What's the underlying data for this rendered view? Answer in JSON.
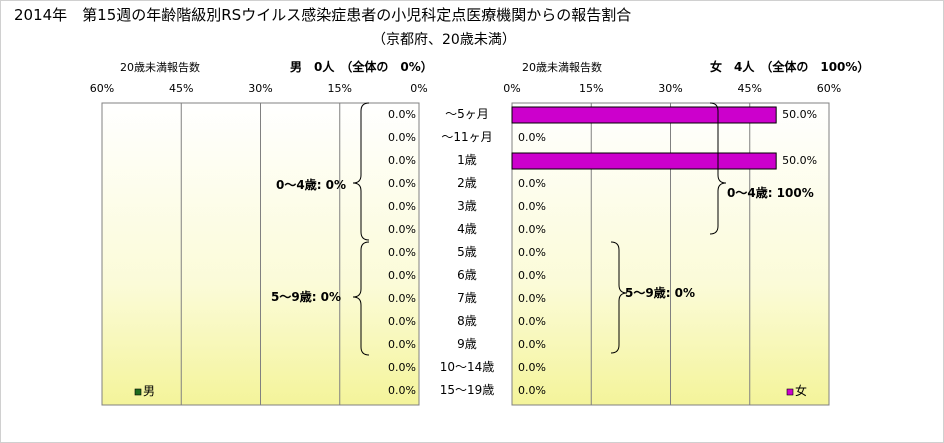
{
  "chart_data": {
    "type": "bar",
    "title": "2014年　第15週の年齢階級別RSウイルス感染症患者の小児科定点医療機関からの報告割合",
    "subtitle": "（京都府、20歳未満）",
    "categories": [
      "～5ヶ月",
      "～11ヶ月",
      "1歳",
      "2歳",
      "3歳",
      "4歳",
      "5歳",
      "6歳",
      "7歳",
      "8歳",
      "9歳",
      "10～14歳",
      "15～19歳"
    ],
    "xlim": [
      0,
      60
    ],
    "ticks": [
      "60%",
      "45%",
      "30%",
      "15%",
      "0%",
      "0%",
      "15%",
      "30%",
      "45%",
      "60%"
    ],
    "grid": true,
    "legend_position": "bottom-left / bottom-right",
    "series": [
      {
        "name": "男",
        "header_label": "20歳未満報告数",
        "header_summary": "男　0人　（全体の　0%）",
        "values": [
          0,
          0,
          0,
          0,
          0,
          0,
          0,
          0,
          0,
          0,
          0,
          0,
          0
        ],
        "value_labels": [
          "0.0%",
          "0.0%",
          "0.0%",
          "0.0%",
          "0.0%",
          "0.0%",
          "0.0%",
          "0.0%",
          "0.0%",
          "0.0%",
          "0.0%",
          "0.0%",
          "0.0%"
        ],
        "bracket_labels": [
          "0～4歳: 0%",
          "5～9歳: 0%"
        ],
        "color": "#1e6b1e"
      },
      {
        "name": "女",
        "header_label": "20歳未満報告数",
        "header_summary": "女　4人　（全体の　100%）",
        "values": [
          50,
          0,
          50,
          0,
          0,
          0,
          0,
          0,
          0,
          0,
          0,
          0,
          0
        ],
        "value_labels": [
          "50.0%",
          "0.0%",
          "50.0%",
          "0.0%",
          "0.0%",
          "0.0%",
          "0.0%",
          "0.0%",
          "0.0%",
          "0.0%",
          "0.0%",
          "0.0%",
          "0.0%"
        ],
        "bracket_labels": [
          "0～4歳: 100%",
          "5～9歳: 0%"
        ],
        "color": "#cc00cc"
      }
    ]
  }
}
